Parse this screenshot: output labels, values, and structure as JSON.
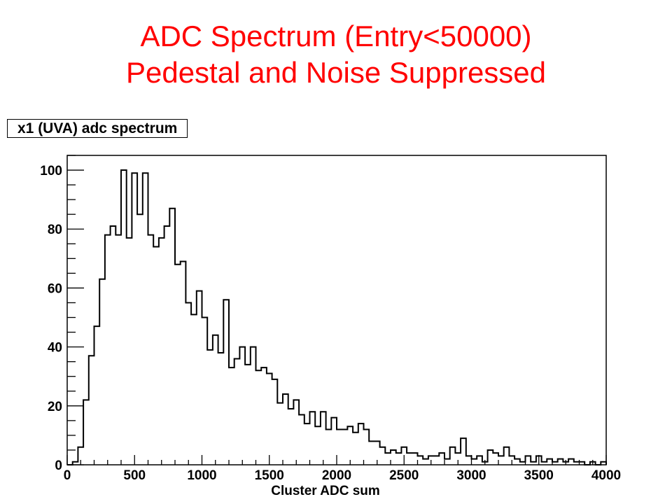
{
  "slide": {
    "title_line1": "ADC Spectrum (Entry<50000)",
    "title_line2": "Pedestal and Noise Suppressed"
  },
  "chart_data": {
    "type": "bar",
    "histogram_title": "x1 (UVA) adc spectrum",
    "xlabel": "Cluster ADC sum",
    "ylabel": "",
    "xlim": [
      0,
      4000
    ],
    "ylim": [
      0,
      105
    ],
    "bin_width": 40,
    "x_ticks": [
      0,
      500,
      1000,
      1500,
      2000,
      2500,
      3000,
      3500,
      4000
    ],
    "y_ticks": [
      0,
      20,
      40,
      60,
      80,
      100
    ],
    "grid": false,
    "legend": "none",
    "line_color": "#000000",
    "values": [
      0,
      1,
      6,
      22,
      37,
      47,
      63,
      78,
      81,
      78,
      100,
      77,
      99,
      85,
      99,
      78,
      74,
      77,
      81,
      87,
      68,
      69,
      55,
      51,
      59,
      50,
      39,
      44,
      38,
      56,
      33,
      36,
      40,
      34,
      40,
      32,
      33,
      31,
      29,
      21,
      24,
      19,
      22,
      17,
      14,
      18,
      13,
      18,
      12,
      16,
      12,
      12,
      13,
      11,
      14,
      12,
      8,
      8,
      6,
      4,
      5,
      4,
      6,
      4,
      4,
      3,
      2,
      3,
      3,
      4,
      2,
      6,
      4,
      9,
      3,
      2,
      3,
      1,
      5,
      4,
      3,
      6,
      3,
      2,
      1,
      3,
      1,
      3,
      1,
      2,
      1,
      2,
      1,
      2,
      1,
      1,
      0,
      1,
      0,
      1
    ]
  }
}
